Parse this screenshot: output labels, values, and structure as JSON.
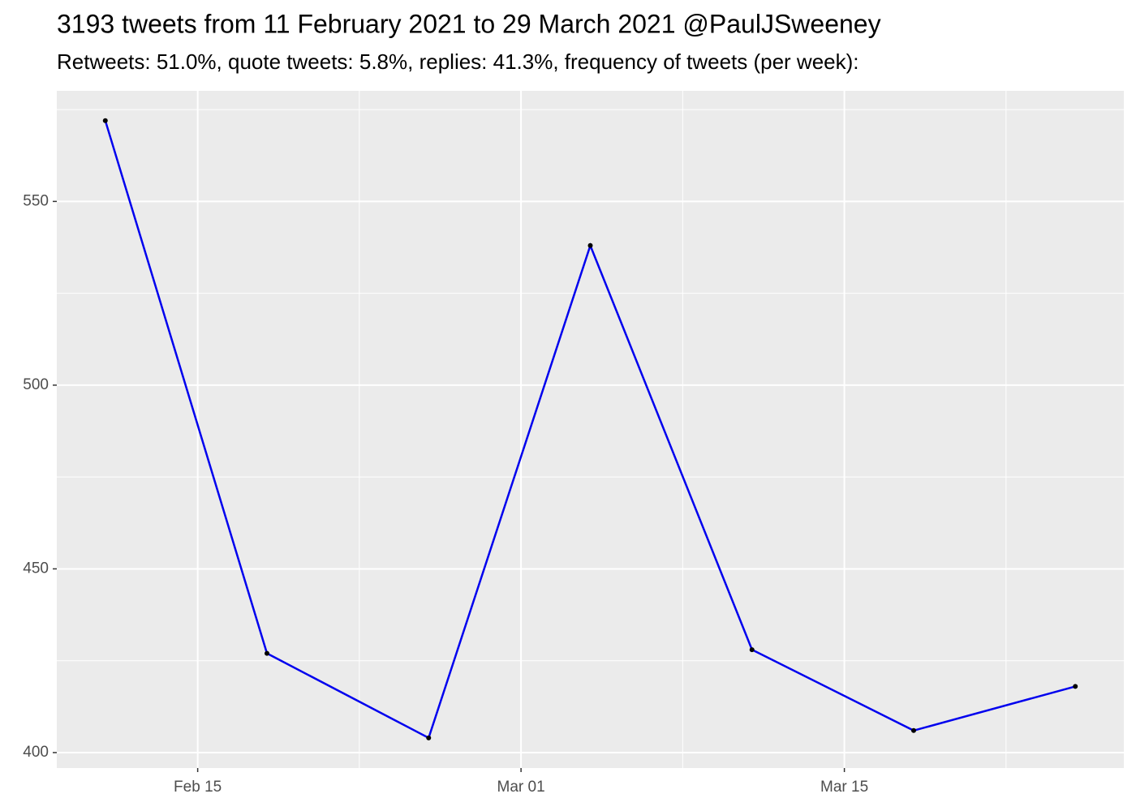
{
  "chart_data": {
    "type": "line",
    "title": "3193 tweets from 11 February 2021 to 29 March 2021 @PaulJSweeney",
    "subtitle": "Retweets: 51.0%, quote tweets: 5.8%, replies: 41.3%, frequency of tweets (per week):",
    "x": [
      "Feb 11",
      "Feb 18",
      "Feb 25",
      "Mar 04",
      "Mar 11",
      "Mar 18",
      "Mar 25"
    ],
    "series": [
      {
        "color": "#0000ee",
        "values": [
          572,
          427,
          404,
          538,
          428,
          406,
          418
        ]
      }
    ],
    "xticks": [
      "Feb 15",
      "Mar 01",
      "Mar 15"
    ],
    "ylim": [
      395.8,
      580.1
    ],
    "yticks": [
      400,
      450,
      500,
      550
    ],
    "grid": true
  }
}
